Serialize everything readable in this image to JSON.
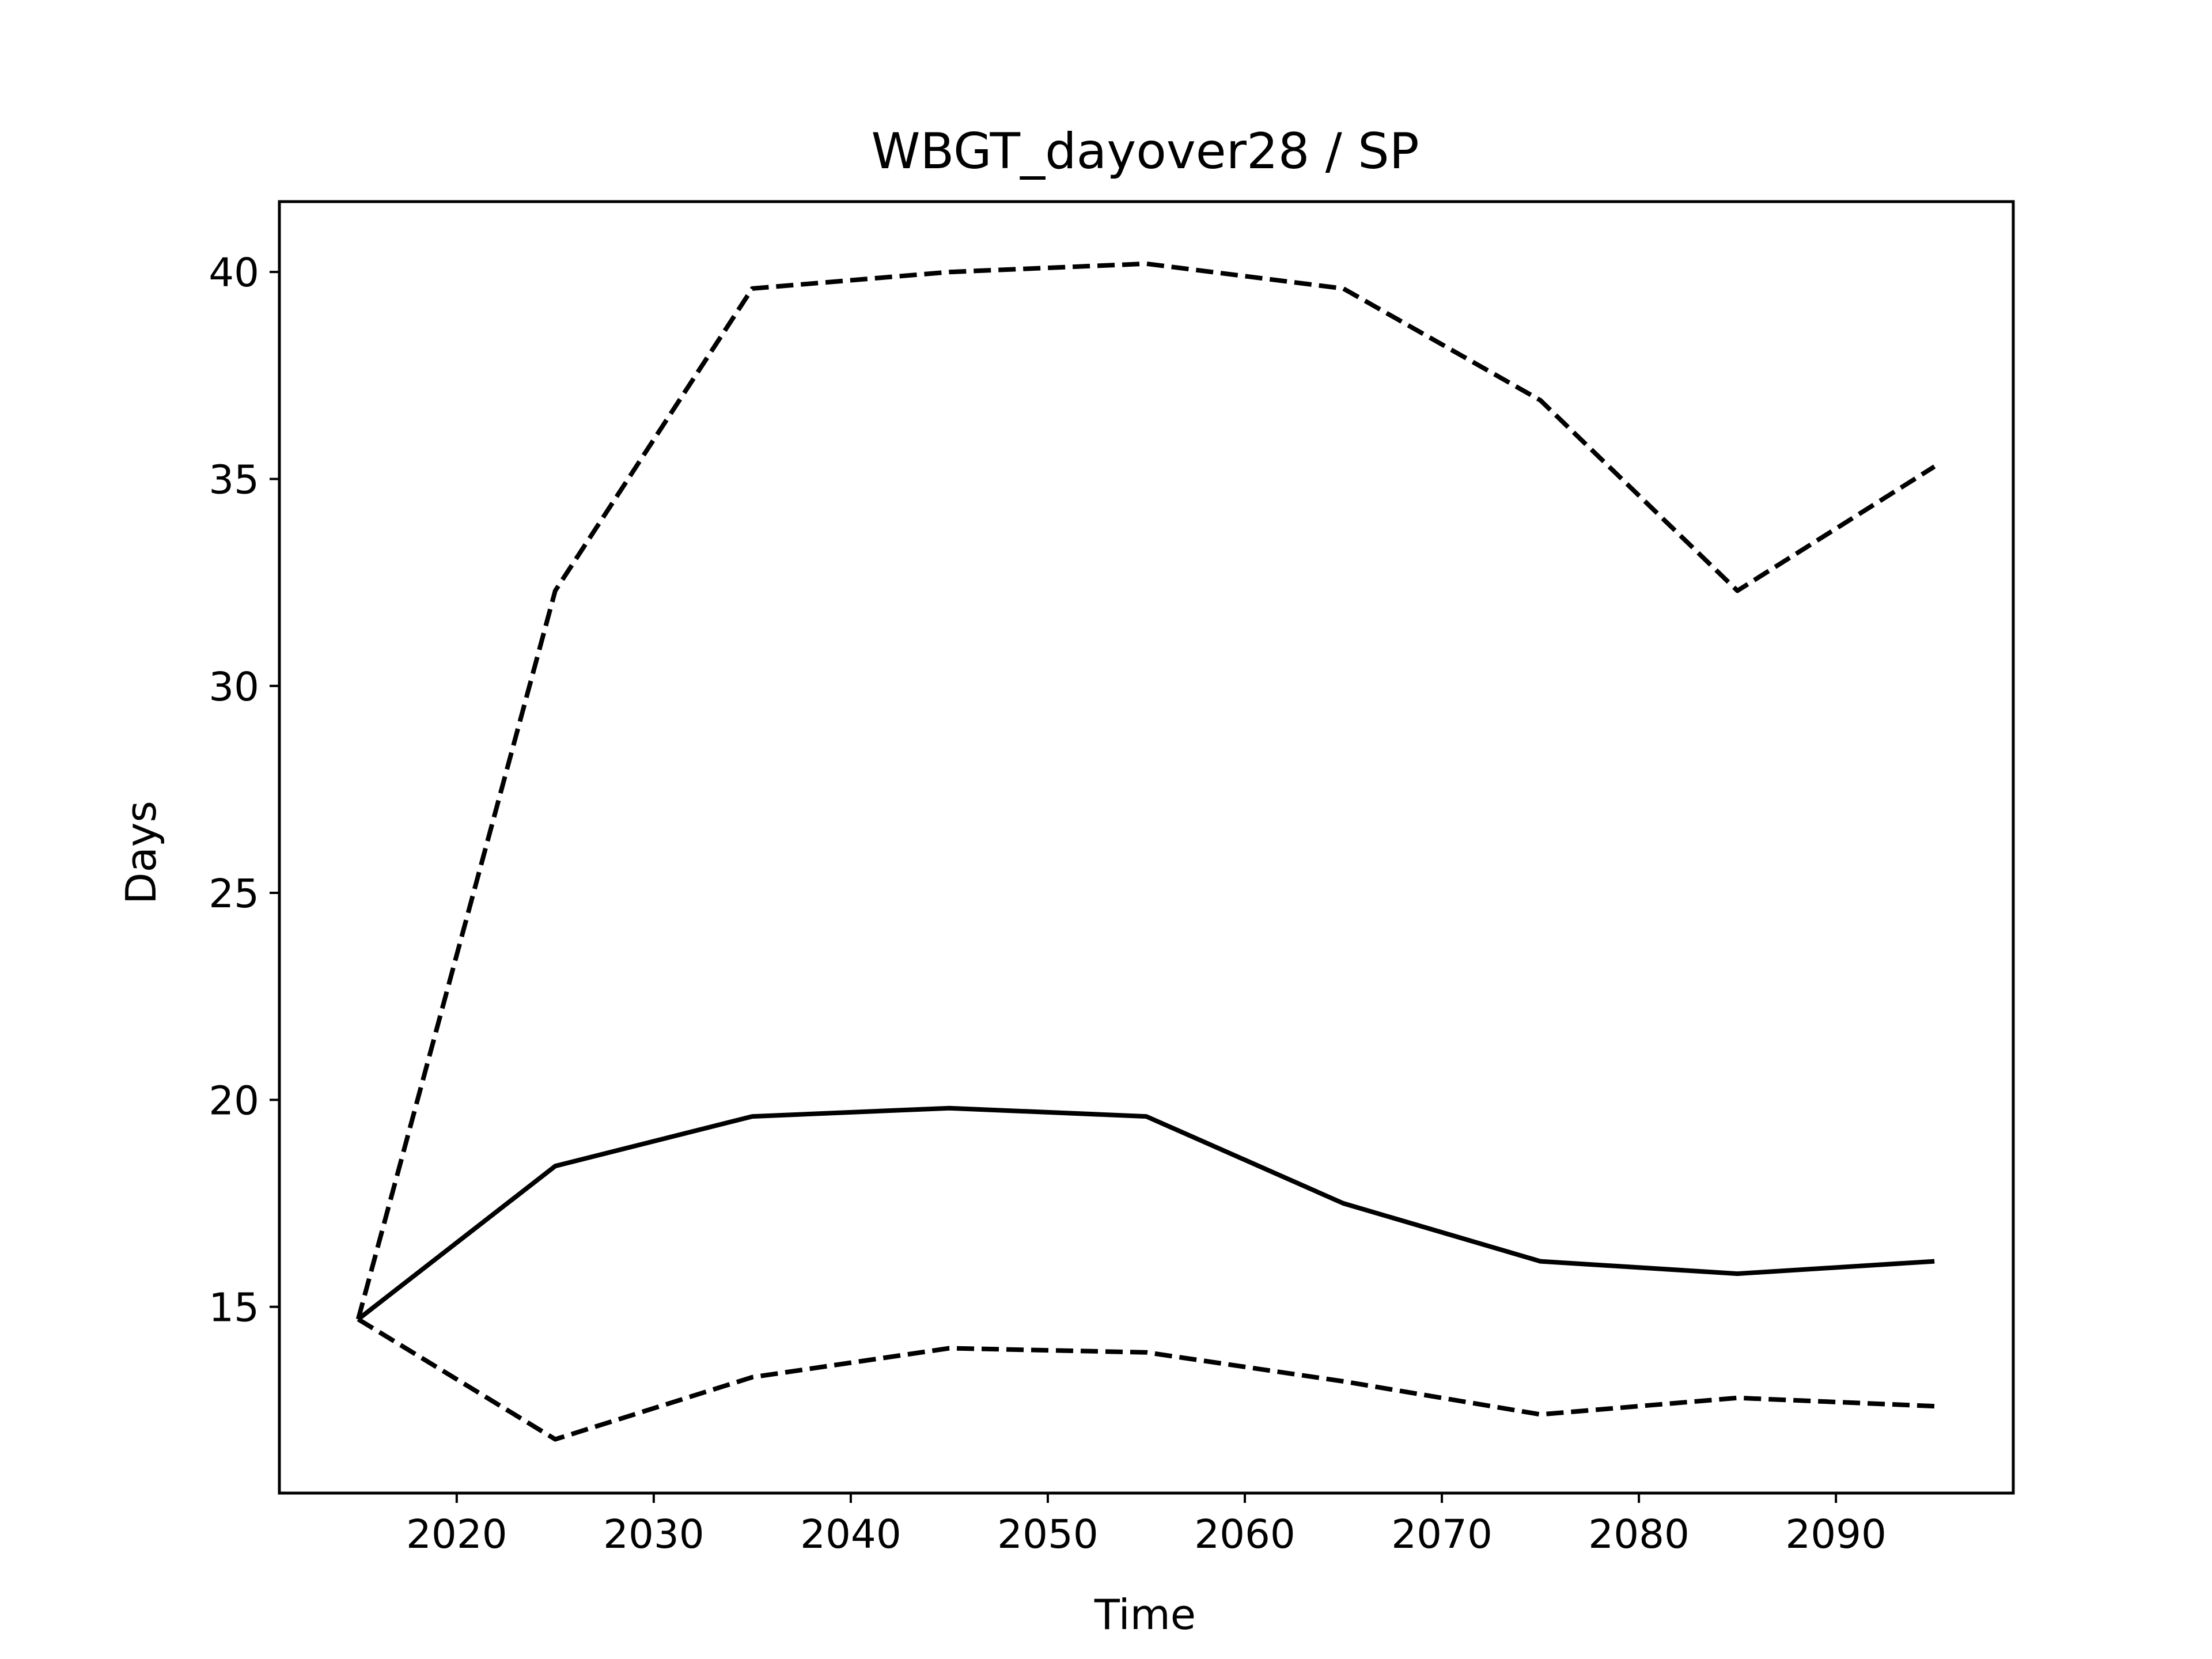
{
  "chart_data": {
    "type": "line",
    "title": "WBGT_dayover28 / SP",
    "xlabel": "Time",
    "ylabel": "Days",
    "xlim": [
      2011,
      2099
    ],
    "ylim": [
      10.5,
      41.7
    ],
    "xticks": [
      2020,
      2030,
      2040,
      2050,
      2060,
      2070,
      2080,
      2090
    ],
    "yticks": [
      15,
      20,
      25,
      30,
      35,
      40
    ],
    "grid": false,
    "legend": "none",
    "x": [
      2015,
      2025,
      2035,
      2045,
      2055,
      2065,
      2075,
      2085,
      2095
    ],
    "series": [
      {
        "style": "solid",
        "color": "#000000",
        "values": [
          14.7,
          18.4,
          19.6,
          19.8,
          19.6,
          17.5,
          16.1,
          15.8,
          16.1
        ]
      },
      {
        "style": "dashed",
        "color": "#000000",
        "values": [
          14.7,
          32.3,
          39.6,
          40.0,
          40.2,
          39.6,
          36.9,
          32.3,
          35.3
        ]
      },
      {
        "style": "dashed",
        "color": "#000000",
        "values": [
          14.7,
          11.8,
          13.3,
          14.0,
          13.9,
          13.2,
          12.4,
          12.8,
          12.6
        ]
      }
    ]
  }
}
